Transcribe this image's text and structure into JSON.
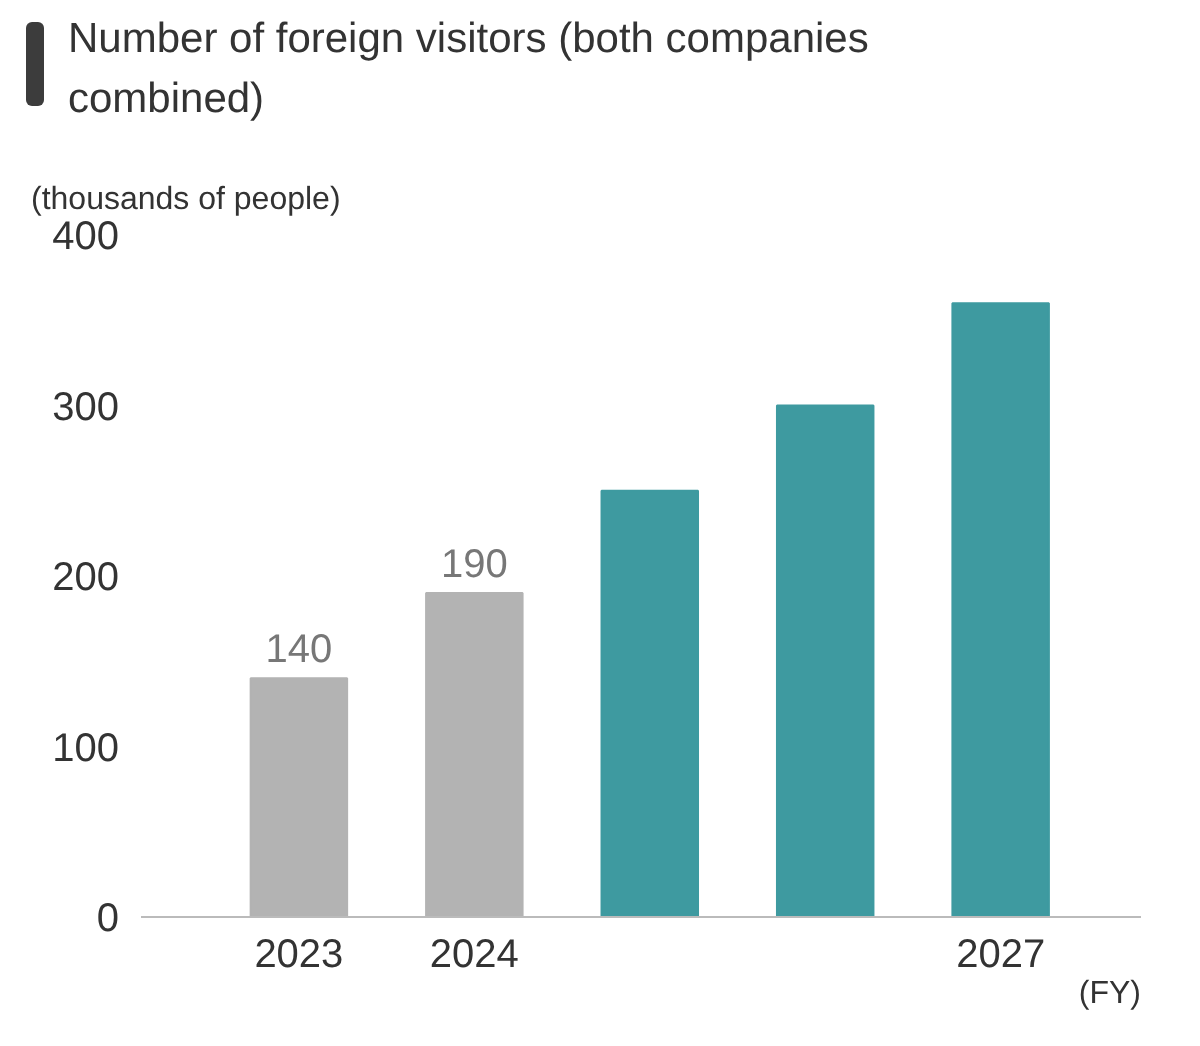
{
  "chart_data": {
    "type": "bar",
    "title": "Number of foreign visitors (both companies combined)",
    "ylabel": "(thousands of people)",
    "xlabel": "(FY)",
    "categories": [
      "2023",
      "2024",
      null,
      null,
      "2027"
    ],
    "values": [
      140,
      190,
      250,
      300,
      360
    ],
    "colors": [
      "#b3b3b3",
      "#b3b3b3",
      "#3e9aa0",
      "#3e9aa0",
      "#3e9aa0"
    ],
    "value_labels": [
      "140",
      "190",
      null,
      null,
      null
    ],
    "ylim": [
      0,
      400
    ],
    "yticks": [
      0,
      100,
      200,
      300,
      400
    ],
    "grid": false
  }
}
